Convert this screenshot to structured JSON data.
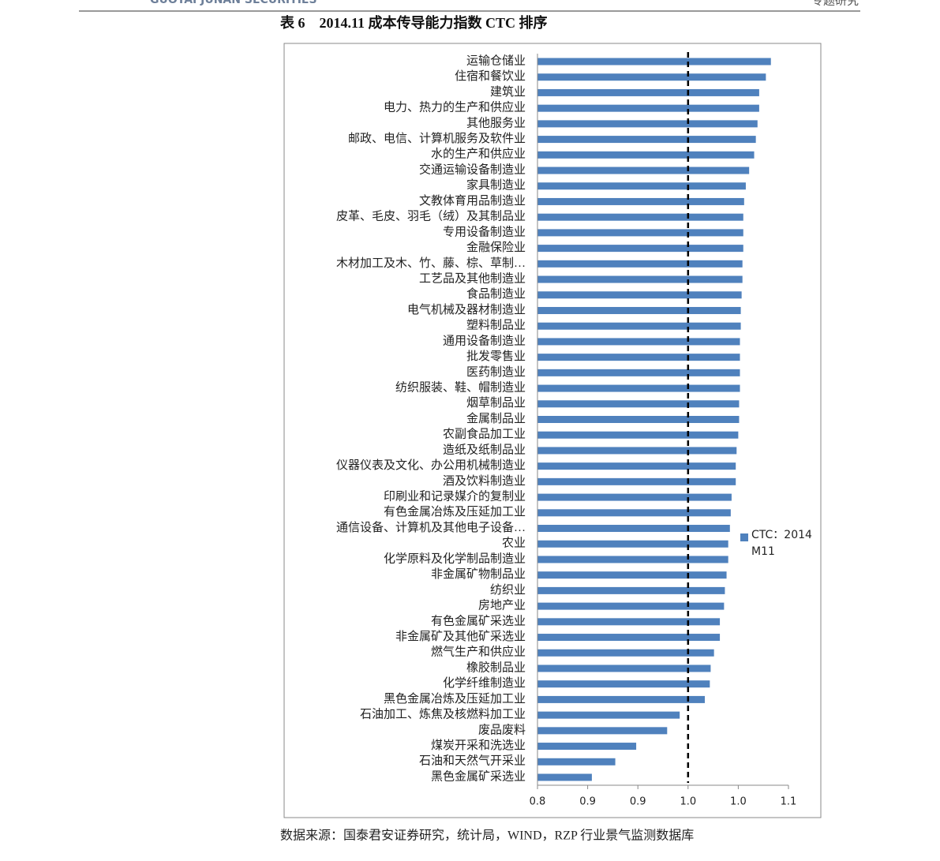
{
  "header": {
    "company": "GUOTAI JUNAN SECURITIES",
    "section": "专题研究"
  },
  "chart_data": {
    "type": "bar",
    "orientation": "horizontal",
    "title": "表 6　2014.11 成本传导能力指数 CTC 排序",
    "categories": [
      "运输仓储业",
      "住宿和餐饮业",
      "建筑业",
      "电力、热力的生产和供应业",
      "其他服务业",
      "邮政、电信、计算机服务及软件业",
      "水的生产和供应业",
      "交通运输设备制造业",
      "家具制造业",
      "文教体育用品制造业",
      "皮革、毛皮、羽毛（绒）及其制品业",
      "专用设备制造业",
      "金融保险业",
      "木材加工及木、竹、藤、棕、草制…",
      "工艺品及其他制造业",
      "食品制造业",
      "电气机械及器材制造业",
      "塑料制品业",
      "通用设备制造业",
      "批发零售业",
      "医药制造业",
      "纺织服装、鞋、帽制造业",
      "烟草制品业",
      "金属制品业",
      "农副食品加工业",
      "造纸及纸制品业",
      "仪器仪表及文化、办公用机械制造业",
      "酒及饮料制造业",
      "印刷业和记录媒介的复制业",
      "有色金属冶炼及压延加工业",
      "通信设备、计算机及其他电子设备…",
      "农业",
      "化学原料及化学制品制造业",
      "非金属矿物制品业",
      "纺织业",
      "房地产业",
      "有色金属矿采选业",
      "非金属矿及其他矿采选业",
      "燃气生产和供应业",
      "橡胶制品业",
      "化学纤维制造业",
      "黑色金属冶炼及压延加工业",
      "石油加工、炼焦及核燃料加工业",
      "废品废料",
      "煤炭开采和洗选业",
      "石油和天然气开采业",
      "黑色金属矿采选业"
    ],
    "series": [
      {
        "name": "CTC：2014M11",
        "color": "#4f81bd",
        "values": [
          1.079,
          1.073,
          1.065,
          1.065,
          1.063,
          1.061,
          1.059,
          1.053,
          1.049,
          1.047,
          1.046,
          1.046,
          1.046,
          1.045,
          1.045,
          1.044,
          1.043,
          1.043,
          1.042,
          1.042,
          1.042,
          1.042,
          1.041,
          1.041,
          1.04,
          1.038,
          1.037,
          1.037,
          1.032,
          1.031,
          1.03,
          1.028,
          1.028,
          1.026,
          1.024,
          1.023,
          1.018,
          1.018,
          1.011,
          1.007,
          1.006,
          1.0,
          0.97,
          0.955,
          0.918,
          0.893,
          0.865
        ]
      }
    ],
    "xlim": [
      0.8,
      1.1
    ],
    "xticks": [
      0.8,
      {
        "value": 0.86,
        "label": "0.9"
      },
      {
        "value": 0.92,
        "label": "0.9"
      },
      {
        "value": 0.98,
        "label": "1.0"
      },
      {
        "value": 1.04,
        "label": "1.0"
      },
      1.1
    ],
    "reference_line": 0.98,
    "legend": "right",
    "source": "数据来源：国泰君安证券研究，统计局，WIND，RZP 行业景气监测数据库"
  }
}
